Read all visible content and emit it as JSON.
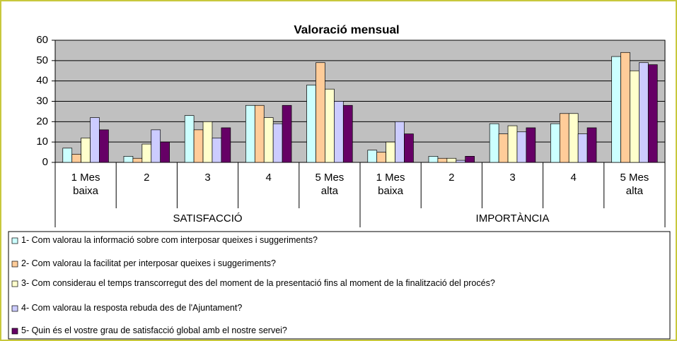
{
  "chart_data": {
    "type": "bar",
    "title": "Valoració mensual",
    "category_groups": [
      {
        "name": "SATISFACCIÓ",
        "categories": [
          "1 Mes baixa",
          "2",
          "3",
          "4",
          "5 Mes alta"
        ]
      },
      {
        "name": "IMPORTÀNCIA",
        "categories": [
          "1 Mes baixa",
          "2",
          "3",
          "4",
          "5 Mes alta"
        ]
      }
    ],
    "series": [
      {
        "name": "1- Com valorau la informació sobre com interposar queixes i suggeriments?",
        "color": "#ccffff",
        "values": [
          7,
          3,
          23,
          28,
          38,
          6,
          3,
          19,
          19,
          52
        ]
      },
      {
        "name": "2- Com valorau la facilitat per interposar queixes i suggeriments?",
        "color": "#ffcc99",
        "values": [
          4,
          2,
          16,
          28,
          49,
          5,
          2,
          14,
          24,
          54
        ]
      },
      {
        "name": "3- Com considerau el temps transcorregut des del moment de la presentació fins al moment de la finalització del procés?",
        "color": "#ffffcc",
        "values": [
          12,
          9,
          20,
          22,
          36,
          10,
          2,
          18,
          24,
          45
        ]
      },
      {
        "name": "4- Com valorau la resposta rebuda des de l'Ajuntament?",
        "color": "#ccccff",
        "values": [
          22,
          16,
          12,
          19,
          30,
          20,
          1,
          15,
          14,
          49
        ]
      },
      {
        "name": "5- Quin és el vostre grau de satisfacció global amb el nostre servei?",
        "color": "#660066",
        "values": [
          16,
          10,
          17,
          28,
          28,
          14,
          3,
          17,
          17,
          48
        ]
      }
    ],
    "ylim": [
      0,
      60
    ],
    "yticks": [
      0,
      10,
      20,
      30,
      40,
      50,
      60
    ],
    "grid": true
  }
}
